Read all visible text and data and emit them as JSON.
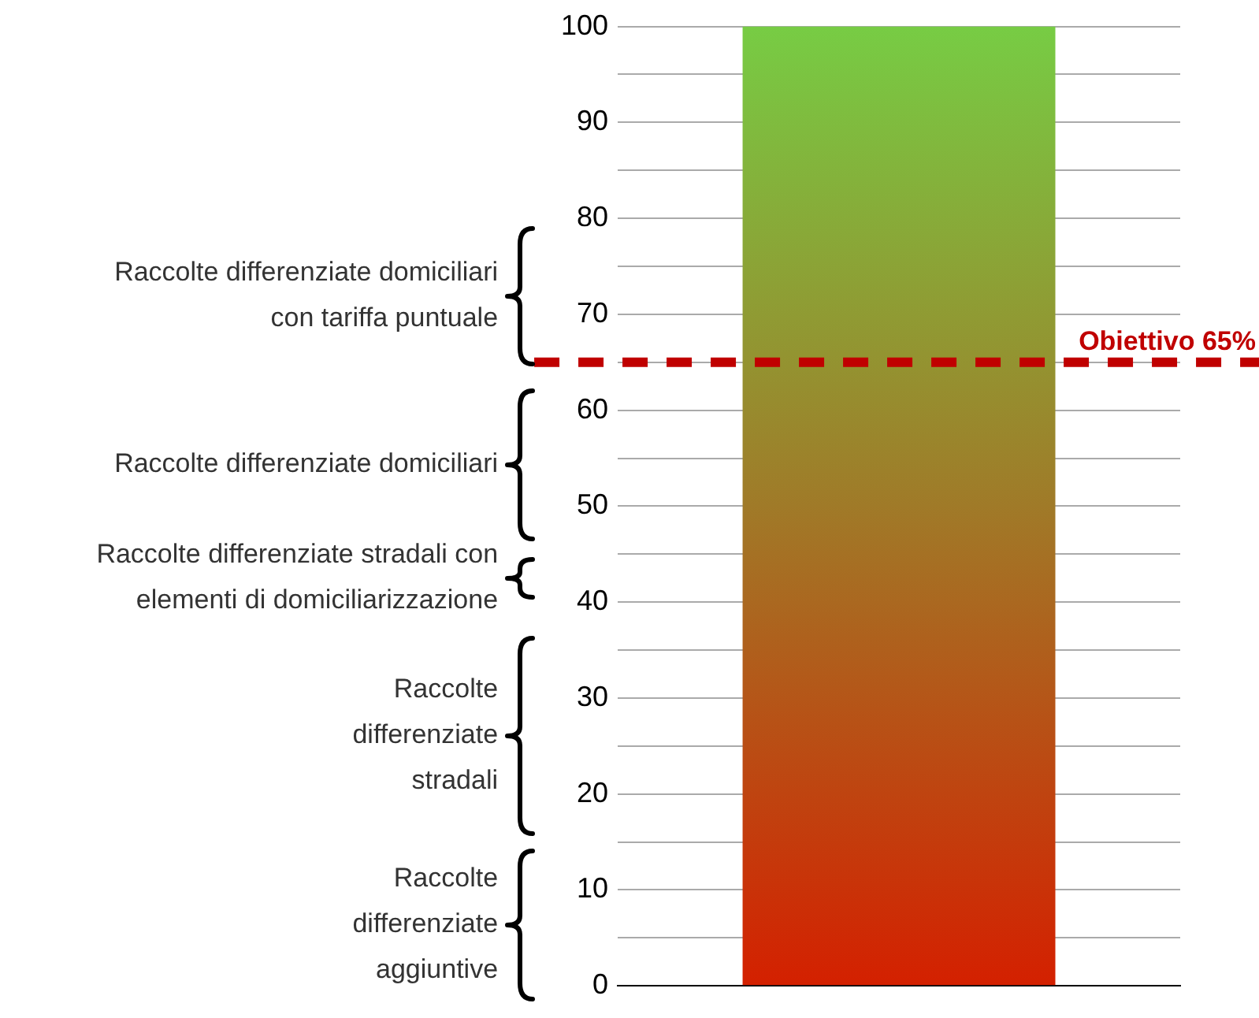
{
  "chart_data": {
    "type": "bar",
    "categories": [
      null
    ],
    "series": [
      {
        "color": "#a07a28",
        "values": [
          100
        ]
      }
    ],
    "ylim": [
      0,
      100
    ],
    "yticks": [
      0,
      {
        "value": 5,
        "label": null
      },
      10,
      {
        "value": 15,
        "label": null
      },
      20,
      {
        "value": 25,
        "label": null
      },
      30,
      {
        "value": 35,
        "label": null
      },
      40,
      {
        "value": 45,
        "label": null
      },
      50,
      {
        "value": 55,
        "label": null
      },
      60,
      {
        "value": 65,
        "label": null
      },
      70,
      {
        "value": 75,
        "label": null
      },
      80,
      {
        "value": 85,
        "label": null
      },
      90,
      {
        "value": 95,
        "label": null
      },
      100
    ],
    "grid": "y",
    "ref_lines": [
      {
        "axis": "y",
        "value": 65,
        "label": "Obiettivo 65%",
        "color": "#c00000",
        "line_style": "dashed"
      }
    ],
    "annotations": [
      "Raccolte\ndifferenziate\naggiuntive",
      "Raccolte\ndifferenziate\nstradali",
      "Raccolte differenziate stradali con\nelementi di domiciliarizzazione",
      "Raccolte differenziate domiciliari",
      "Raccolte differenziate domiciliari\ncon tariffa puntuale"
    ]
  }
}
